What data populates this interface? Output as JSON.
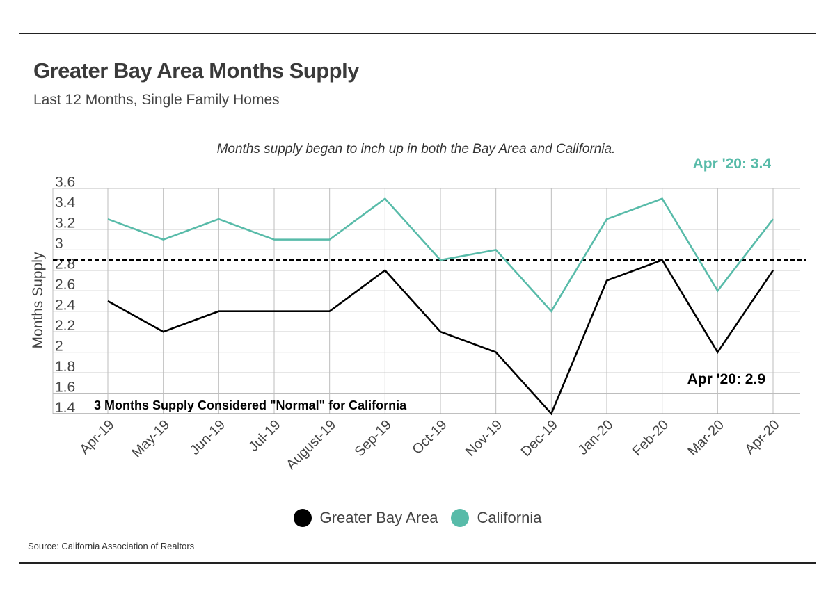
{
  "header": {
    "title": "Greater Bay Area Months Supply",
    "subtitle": "Last 12 Months, Single Family Homes"
  },
  "footer": {
    "source": "Source:  California Association of Realtors"
  },
  "colors": {
    "greater_bay_area": "#000000",
    "california": "#58bba9",
    "grid": "#bdbdbd",
    "reference_line": "#000000"
  },
  "chart_data": {
    "type": "line",
    "annotation_top": "Months supply began to inch up in both the Bay Area and California.",
    "categories": [
      "Apr-19",
      "May-19",
      "Jun-19",
      "Jul-19",
      "August-19",
      "Sep-19",
      "Oct-19",
      "Nov-19",
      "Dec-19",
      "Jan-20",
      "Feb-20",
      "Mar-20",
      "Apr-20"
    ],
    "series": [
      {
        "name": "Greater Bay Area",
        "color": "#000000",
        "values": [
          2.6,
          2.3,
          2.5,
          2.5,
          2.5,
          2.9,
          2.3,
          2.1,
          1.5,
          2.8,
          3.0,
          2.1,
          2.9
        ]
      },
      {
        "name": "California",
        "color": "#58bba9",
        "values": [
          3.4,
          3.2,
          3.4,
          3.2,
          3.2,
          3.6,
          3.0,
          3.1,
          2.5,
          3.4,
          3.6,
          2.7,
          3.4
        ]
      }
    ],
    "ylabel": "Months Supply",
    "xlabel": "",
    "yticks": [
      "1.4",
      "1.6",
      "1.8",
      "2",
      "2.2",
      "2.4",
      "2.6",
      "2.8",
      "3",
      "3.2",
      "3.4",
      "3.6"
    ],
    "ylim": [
      1.5,
      3.7
    ],
    "reference_line": {
      "value": 3.0,
      "style": "dashed",
      "label": "3 Months Supply Considered \"Normal\" for California"
    },
    "end_labels": [
      {
        "series": "California",
        "text": "Apr '20: 3.4"
      },
      {
        "series": "Greater Bay Area",
        "text": "Apr '20: 2.9"
      }
    ],
    "grid": true,
    "legend": "bottom-center"
  }
}
